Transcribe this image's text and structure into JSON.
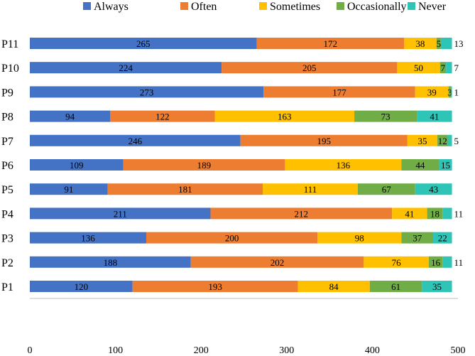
{
  "chart_data": {
    "type": "bar",
    "orientation": "horizontal",
    "stacked": true,
    "title": "",
    "xlabel": "",
    "ylabel": "",
    "xlim": [
      0,
      500
    ],
    "x_ticks": [
      0,
      100,
      200,
      300,
      400,
      500
    ],
    "grid": false,
    "legend_position": "top",
    "categories": [
      "P11",
      "P10",
      "P9",
      "P8",
      "P7",
      "P6",
      "P5",
      "P4",
      "P3",
      "P2",
      "P1"
    ],
    "series": [
      {
        "name": "Always",
        "color": "#4472C4",
        "values": [
          265,
          224,
          273,
          94,
          246,
          109,
          91,
          211,
          136,
          188,
          120
        ]
      },
      {
        "name": "Often",
        "color": "#ED7D31",
        "values": [
          172,
          205,
          177,
          122,
          195,
          189,
          181,
          212,
          200,
          202,
          193
        ]
      },
      {
        "name": "Sometimes",
        "color": "#FFC000",
        "values": [
          38,
          50,
          39,
          163,
          35,
          136,
          111,
          41,
          98,
          76,
          84
        ]
      },
      {
        "name": "Occasionally",
        "color": "#70AD47",
        "values": [
          5,
          7,
          3,
          73,
          12,
          44,
          67,
          18,
          37,
          16,
          61
        ]
      },
      {
        "name": "Never",
        "color": "#2EC4B6",
        "values": [
          13,
          7,
          1,
          41,
          5,
          15,
          43,
          11,
          22,
          11,
          35
        ]
      }
    ],
    "outside_labels": {
      "P11": 13,
      "P10": 7,
      "P9": 1,
      "P7": 5,
      "P4": 11,
      "P2": 11
    }
  }
}
